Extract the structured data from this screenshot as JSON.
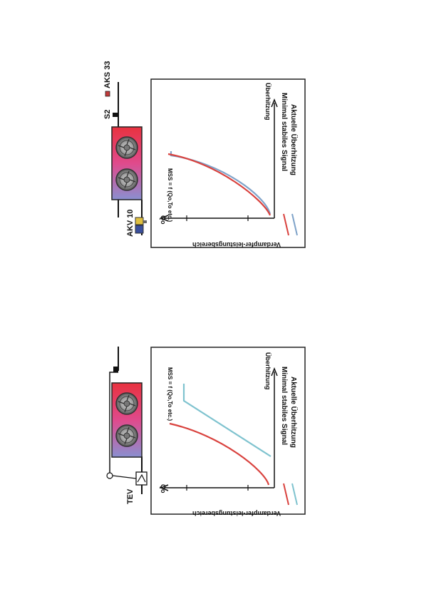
{
  "colors": {
    "mss_curve": "#d9423e",
    "superheat_curve": "#7fa3c9",
    "tev_superheat_line": "#7fc3cf",
    "frame": "#222222"
  },
  "diagrams": [
    {
      "device_label": "AKV 10",
      "sensor_labels": {
        "s2": "S2",
        "aks": "AKS 33"
      },
      "formula": "MSS = f (Qo,To etc.)",
      "x_axis_label": "Überhitzung",
      "y_axis_label": "Verdampfer-leistungsbereich",
      "q_symbol": "Qo",
      "legend": {
        "mss": "Minimal stabiles Signal",
        "superheat": "Aktuelle Überhitzung"
      }
    },
    {
      "device_label": "TEV",
      "formula": "MSS = f (Qo,To etc.)",
      "x_axis_label": "Überhitzung",
      "y_axis_label": "Verdampfer-leistungsbereich",
      "q_symbol": "Qo",
      "legend": {
        "mss": "Minimal stabiles Signal",
        "superheat": "Aktuelle Überhitzung"
      }
    }
  ]
}
